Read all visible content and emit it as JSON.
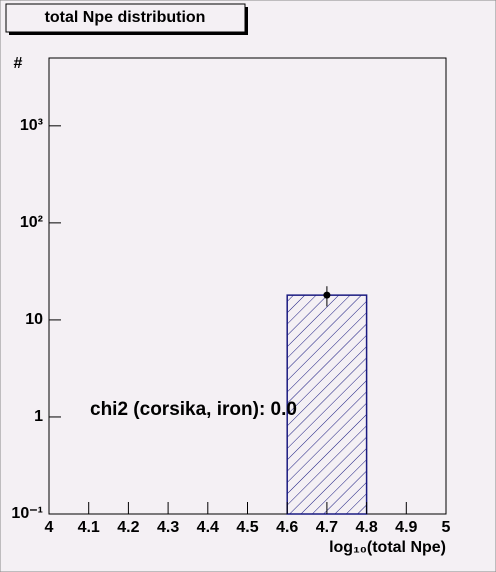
{
  "chart_data": {
    "type": "histogram",
    "title": "total Npe distribution",
    "x_label": "log₁₀(total Npe)",
    "y_label": "#",
    "annotation": "chi2 (corsika, iron): 0.0",
    "bins": [
      4.6,
      4.8
    ],
    "values": [
      18
    ],
    "errors": [
      4.24
    ],
    "color": "#1a1a80",
    "xlim": [
      4,
      5
    ],
    "xticks": [
      4,
      4.1,
      4.2,
      4.3,
      4.4,
      4.5,
      4.6,
      4.7,
      4.8,
      4.9,
      5
    ],
    "ylim": [
      0.1,
      5000
    ],
    "log_y": true,
    "yticks": [
      {
        "value": 0.1,
        "label": "10⁻¹"
      },
      1,
      10,
      {
        "value": 100,
        "label": "10²"
      },
      {
        "value": 1000,
        "label": "10³"
      }
    ]
  }
}
